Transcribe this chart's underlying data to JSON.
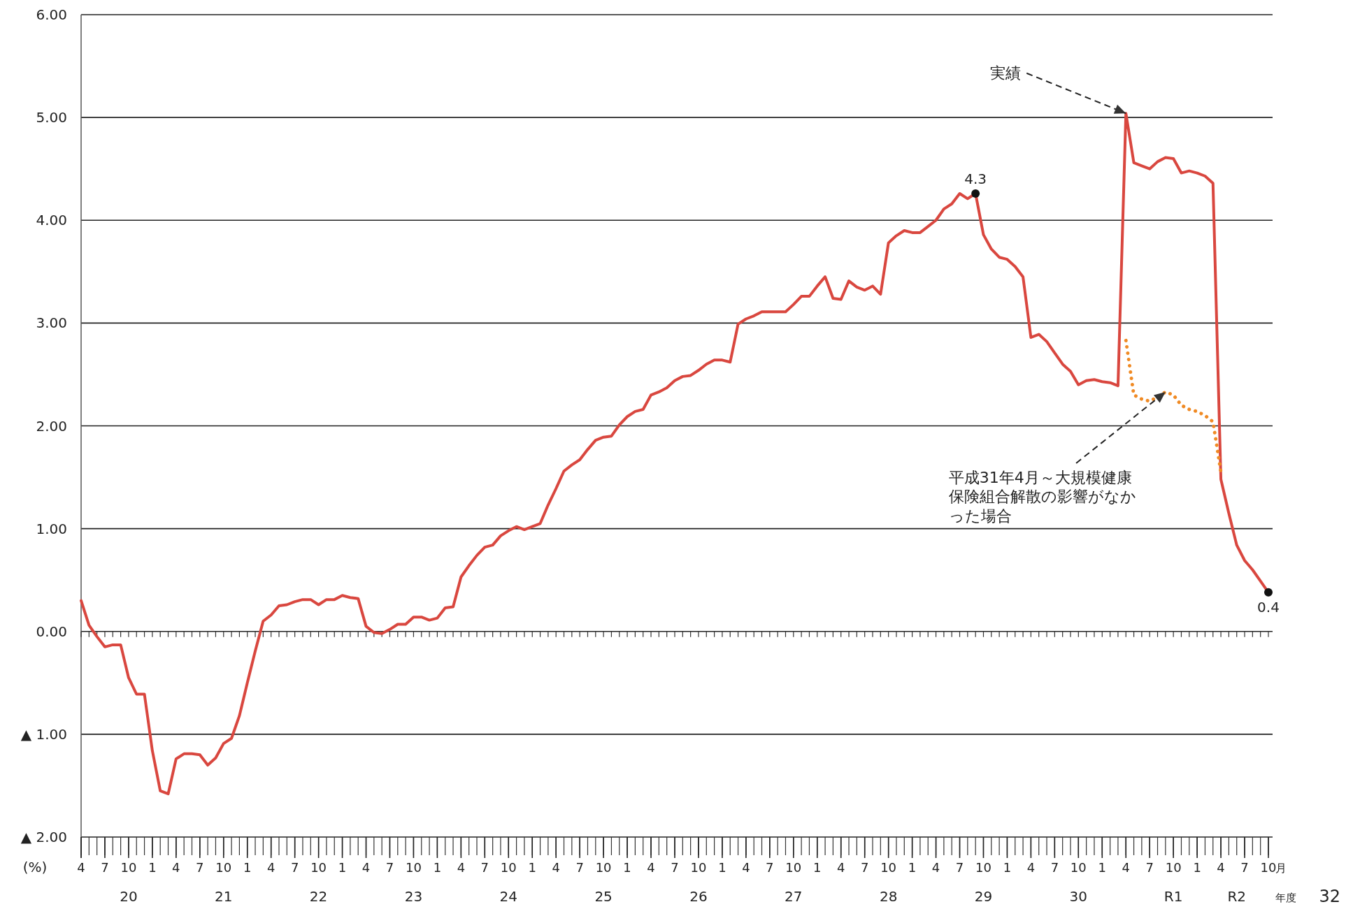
{
  "chart_data": {
    "type": "line",
    "ylabel": "(%)",
    "xlabel": "月",
    "x2label": "年度",
    "x": [
      "2008-04",
      "2008-05",
      "2008-06",
      "2008-07",
      "2008-08",
      "2008-09",
      "2008-10",
      "2008-11",
      "2008-12",
      "2009-01",
      "2009-02",
      "2009-03",
      "2009-04",
      "2009-05",
      "2009-06",
      "2009-07",
      "2009-08",
      "2009-09",
      "2009-10",
      "2009-11",
      "2009-12",
      "2010-01",
      "2010-02",
      "2010-03",
      "2010-04",
      "2010-05",
      "2010-06",
      "2010-07",
      "2010-08",
      "2010-09",
      "2010-10",
      "2010-11",
      "2010-12",
      "2011-01",
      "2011-02",
      "2011-03",
      "2011-04",
      "2011-05",
      "2011-06",
      "2011-07",
      "2011-08",
      "2011-09",
      "2011-10",
      "2011-11",
      "2011-12",
      "2012-01",
      "2012-02",
      "2012-03",
      "2012-04",
      "2012-05",
      "2012-06",
      "2012-07",
      "2012-08",
      "2012-09",
      "2012-10",
      "2012-11",
      "2012-12",
      "2013-01",
      "2013-02",
      "2013-03",
      "2013-04",
      "2013-05",
      "2013-06",
      "2013-07",
      "2013-08",
      "2013-09",
      "2013-10",
      "2013-11",
      "2013-12",
      "2014-01",
      "2014-02",
      "2014-03",
      "2014-04",
      "2014-05",
      "2014-06",
      "2014-07",
      "2014-08",
      "2014-09",
      "2014-10",
      "2014-11",
      "2014-12",
      "2015-01",
      "2015-02",
      "2015-03",
      "2015-04",
      "2015-05",
      "2015-06",
      "2015-07",
      "2015-08",
      "2015-09",
      "2015-10",
      "2015-11",
      "2015-12",
      "2016-01",
      "2016-02",
      "2016-03",
      "2016-04",
      "2016-05",
      "2016-06",
      "2016-07",
      "2016-08",
      "2016-09",
      "2016-10",
      "2016-11",
      "2016-12",
      "2017-01",
      "2017-02",
      "2017-03",
      "2017-04",
      "2017-05",
      "2017-06",
      "2017-07",
      "2017-08",
      "2017-09",
      "2017-10",
      "2017-11",
      "2017-12",
      "2018-01",
      "2018-02",
      "2018-03",
      "2018-04",
      "2018-05",
      "2018-06",
      "2018-07",
      "2018-08",
      "2018-09",
      "2018-10",
      "2018-11",
      "2018-12",
      "2019-01",
      "2019-02",
      "2019-03",
      "2019-04",
      "2019-05",
      "2019-06",
      "2019-07",
      "2019-08",
      "2019-09",
      "2019-10",
      "2019-11",
      "2019-12",
      "2020-01",
      "2020-02",
      "2020-03",
      "2020-04",
      "2020-05",
      "2020-06",
      "2020-07",
      "2020-08",
      "2020-09",
      "2020-10"
    ],
    "series": [
      {
        "color": "#d9473f",
        "line_style": "solid",
        "values": [
          0.3,
          0.06,
          -0.05,
          -0.15,
          -0.13,
          -0.13,
          -0.45,
          -0.61,
          -0.61,
          -1.16,
          -1.55,
          -1.58,
          -1.24,
          -1.19,
          -1.19,
          -1.2,
          -1.3,
          -1.23,
          -1.09,
          -1.04,
          -0.82,
          -0.5,
          -0.19,
          0.1,
          0.16,
          0.25,
          0.26,
          0.29,
          0.31,
          0.31,
          0.26,
          0.31,
          0.31,
          0.35,
          0.33,
          0.32,
          0.05,
          -0.01,
          -0.02,
          0.02,
          0.07,
          0.07,
          0.14,
          0.14,
          0.11,
          0.13,
          0.23,
          0.24,
          0.53,
          0.64,
          0.74,
          0.82,
          0.84,
          0.93,
          0.98,
          1.02,
          0.99,
          1.02,
          1.05,
          1.23,
          1.39,
          1.56,
          1.62,
          1.67,
          1.77,
          1.86,
          1.89,
          1.9,
          2.01,
          2.09,
          2.14,
          2.16,
          2.3,
          2.33,
          2.37,
          2.44,
          2.48,
          2.49,
          2.54,
          2.6,
          2.64,
          2.64,
          2.62,
          2.99,
          3.04,
          3.07,
          3.11,
          3.11,
          3.11,
          3.11,
          3.18,
          3.26,
          3.26,
          3.36,
          3.45,
          3.24,
          3.23,
          3.41,
          3.35,
          3.32,
          3.36,
          3.28,
          3.78,
          3.85,
          3.9,
          3.88,
          3.88,
          3.94,
          4.0,
          4.11,
          4.16,
          4.26,
          4.21,
          4.26,
          3.86,
          3.72,
          3.64,
          3.62,
          3.55,
          3.45,
          2.86,
          2.89,
          2.82,
          2.71,
          2.6,
          2.53,
          2.4,
          2.44,
          2.45,
          2.43,
          2.42,
          2.39,
          5.04,
          4.56,
          4.53,
          4.5,
          4.57,
          4.61,
          4.6,
          4.46,
          4.48,
          4.46,
          4.43,
          4.36,
          1.48,
          1.15,
          0.84,
          0.69,
          0.6,
          0.49,
          0.38
        ],
        "value_labels": [
          null,
          null,
          null,
          null,
          null,
          null,
          null,
          null,
          null,
          null,
          null,
          null,
          null,
          null,
          null,
          null,
          null,
          null,
          null,
          null,
          null,
          null,
          null,
          null,
          null,
          null,
          null,
          null,
          null,
          null,
          null,
          null,
          null,
          null,
          null,
          null,
          null,
          null,
          null,
          null,
          null,
          null,
          null,
          null,
          null,
          null,
          null,
          null,
          null,
          null,
          null,
          null,
          null,
          null,
          null,
          null,
          null,
          null,
          null,
          null,
          null,
          null,
          null,
          null,
          null,
          null,
          null,
          null,
          null,
          null,
          null,
          null,
          null,
          null,
          null,
          null,
          null,
          null,
          null,
          null,
          null,
          null,
          null,
          null,
          null,
          null,
          null,
          null,
          null,
          null,
          null,
          null,
          null,
          null,
          null,
          null,
          null,
          null,
          null,
          null,
          null,
          null,
          null,
          null,
          null,
          null,
          null,
          null,
          null,
          null,
          null,
          null,
          null,
          "4.3",
          null,
          null,
          null,
          null,
          null,
          null,
          null,
          null,
          null,
          null,
          null,
          null,
          null,
          null,
          null,
          null,
          null,
          null,
          null,
          null,
          null,
          null,
          null,
          null,
          null,
          null,
          null,
          null,
          null,
          null,
          null,
          null,
          null,
          null,
          null,
          null,
          "0.4"
        ]
      },
      {
        "color": "#f08a24",
        "line_style": "dotted",
        "x": [
          "2019-04",
          "2019-05",
          "2019-06",
          "2019-07",
          "2019-08",
          "2019-09",
          "2019-10",
          "2019-11",
          "2019-12",
          "2020-01",
          "2020-02",
          "2020-03",
          "2020-04"
        ],
        "values": [
          2.83,
          2.3,
          2.26,
          2.24,
          2.28,
          2.33,
          2.3,
          2.2,
          2.16,
          2.14,
          2.1,
          2.04,
          1.55
        ]
      }
    ],
    "xlim": [
      "2008-04",
      "2020-10"
    ],
    "xticks": [
      {
        "value": "2008-04",
        "label": "4"
      },
      {
        "value": "2008-07",
        "label": "7"
      },
      {
        "value": "2008-10",
        "label": "10"
      },
      {
        "value": "2009-01",
        "label": "1"
      },
      {
        "value": "2009-04",
        "label": "4"
      },
      {
        "value": "2009-07",
        "label": "7"
      },
      {
        "value": "2009-10",
        "label": "10"
      },
      {
        "value": "2010-01",
        "label": "1"
      },
      {
        "value": "2010-04",
        "label": "4"
      },
      {
        "value": "2010-07",
        "label": "7"
      },
      {
        "value": "2010-10",
        "label": "10"
      },
      {
        "value": "2011-01",
        "label": "1"
      },
      {
        "value": "2011-04",
        "label": "4"
      },
      {
        "value": "2011-07",
        "label": "7"
      },
      {
        "value": "2011-10",
        "label": "10"
      },
      {
        "value": "2012-01",
        "label": "1"
      },
      {
        "value": "2012-04",
        "label": "4"
      },
      {
        "value": "2012-07",
        "label": "7"
      },
      {
        "value": "2012-10",
        "label": "10"
      },
      {
        "value": "2013-01",
        "label": "1"
      },
      {
        "value": "2013-04",
        "label": "4"
      },
      {
        "value": "2013-07",
        "label": "7"
      },
      {
        "value": "2013-10",
        "label": "10"
      },
      {
        "value": "2014-01",
        "label": "1"
      },
      {
        "value": "2014-04",
        "label": "4"
      },
      {
        "value": "2014-07",
        "label": "7"
      },
      {
        "value": "2014-10",
        "label": "10"
      },
      {
        "value": "2015-01",
        "label": "1"
      },
      {
        "value": "2015-04",
        "label": "4"
      },
      {
        "value": "2015-07",
        "label": "7"
      },
      {
        "value": "2015-10",
        "label": "10"
      },
      {
        "value": "2016-01",
        "label": "1"
      },
      {
        "value": "2016-04",
        "label": "4"
      },
      {
        "value": "2016-07",
        "label": "7"
      },
      {
        "value": "2016-10",
        "label": "10"
      },
      {
        "value": "2017-01",
        "label": "1"
      },
      {
        "value": "2017-04",
        "label": "4"
      },
      {
        "value": "2017-07",
        "label": "7"
      },
      {
        "value": "2017-10",
        "label": "10"
      },
      {
        "value": "2018-01",
        "label": "1"
      },
      {
        "value": "2018-04",
        "label": "4"
      },
      {
        "value": "2018-07",
        "label": "7"
      },
      {
        "value": "2018-10",
        "label": "10"
      },
      {
        "value": "2019-01",
        "label": "1"
      },
      {
        "value": "2019-04",
        "label": "4"
      },
      {
        "value": "2019-07",
        "label": "7"
      },
      {
        "value": "2019-10",
        "label": "10"
      },
      {
        "value": "2020-01",
        "label": "1"
      },
      {
        "value": "2020-04",
        "label": "4"
      },
      {
        "value": "2020-07",
        "label": "7"
      },
      {
        "value": "2020-10",
        "label": "10"
      }
    ],
    "x2lim": [
      "2008-04",
      "2020-10"
    ],
    "x2ticks": [
      {
        "value": "2008-10",
        "label": "20"
      },
      {
        "value": "2009-10",
        "label": "21"
      },
      {
        "value": "2010-10",
        "label": "22"
      },
      {
        "value": "2011-10",
        "label": "23"
      },
      {
        "value": "2012-10",
        "label": "24"
      },
      {
        "value": "2013-10",
        "label": "25"
      },
      {
        "value": "2014-10",
        "label": "26"
      },
      {
        "value": "2015-10",
        "label": "27"
      },
      {
        "value": "2016-10",
        "label": "28"
      },
      {
        "value": "2017-10",
        "label": "29"
      },
      {
        "value": "2018-10",
        "label": "30"
      },
      {
        "value": "2019-10",
        "label": "R1"
      },
      {
        "value": "2020-06",
        "label": "R2"
      }
    ],
    "ylim": [
      -2,
      6
    ],
    "yticks": [
      {
        "value": 6,
        "label": "6.00"
      },
      {
        "value": 5,
        "label": "5.00"
      },
      {
        "value": 4,
        "label": "4.00"
      },
      {
        "value": 3,
        "label": "3.00"
      },
      {
        "value": 2,
        "label": "2.00"
      },
      {
        "value": 1,
        "label": "1.00"
      },
      {
        "value": 0,
        "label": "0.00"
      },
      {
        "value": -1,
        "label": "▲ 1.00"
      },
      {
        "value": -2,
        "label": "▲ 2.00"
      }
    ],
    "grid": "y",
    "marker": "none",
    "annotations": [
      {
        "text": "実績",
        "x": "2019-04",
        "y": 5.04
      },
      {
        "text": "平成31年4月～大規模健康保険組合解散の影響がなかった場合",
        "x": "2019-09",
        "y": 2.33
      },
      "32"
    ]
  }
}
